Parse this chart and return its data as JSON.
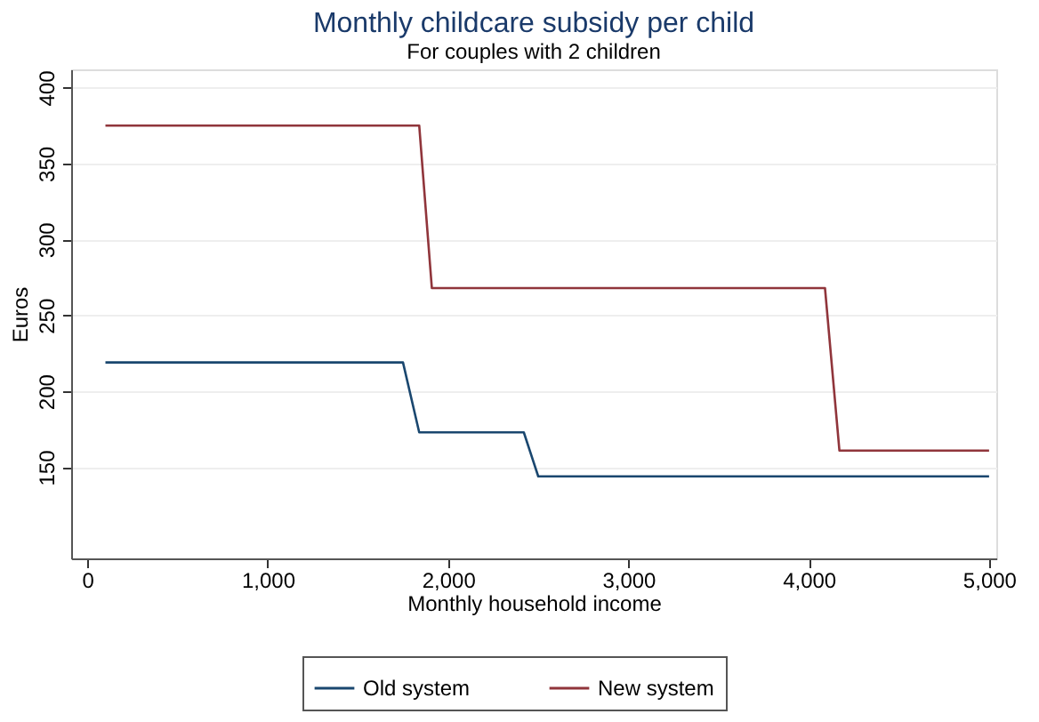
{
  "chart_data": {
    "type": "line",
    "title": "Monthly childcare subsidy per child",
    "subtitle": "For couples with 2 children",
    "xlabel": "Monthly household income",
    "ylabel": "Euros",
    "xlim": [
      -90,
      5040
    ],
    "xticks": [
      {
        "value": 0,
        "label": "0"
      },
      {
        "value": 1000,
        "label": "1,000"
      },
      {
        "value": 2000,
        "label": "2,000"
      },
      {
        "value": 3000,
        "label": "3,000"
      },
      {
        "value": 4000,
        "label": "4,000"
      },
      {
        "value": 5000,
        "label": "5,000"
      }
    ],
    "ylim": [
      90,
      412
    ],
    "yticks": [
      150,
      200,
      250,
      300,
      350,
      400
    ],
    "grid": "y",
    "legend": "bottom",
    "marker": "none",
    "line_style": "solid",
    "series": [
      {
        "name": "Old system",
        "color": "#1a476f",
        "x": [
          100,
          1750,
          1840,
          2420,
          2500,
          5000
        ],
        "values": [
          219,
          219,
          173,
          173,
          144,
          144
        ]
      },
      {
        "name": "New system",
        "color": "#90353b",
        "x": [
          100,
          1840,
          1910,
          4090,
          4170,
          5000
        ],
        "values": [
          375,
          375,
          268,
          268,
          161,
          161
        ]
      }
    ]
  }
}
